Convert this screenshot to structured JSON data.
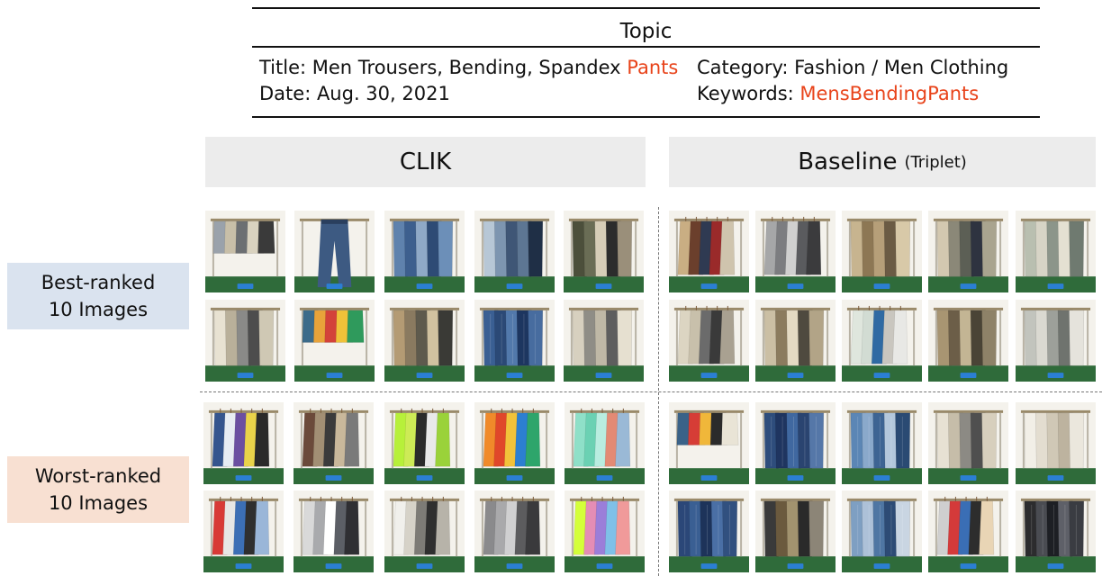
{
  "topic": {
    "heading": "Topic",
    "title_prefix": "Title: Men Trousers, Bending, Spandex ",
    "title_highlight": "Pants",
    "date": "Date: Aug. 30, 2021",
    "category": "Category: Fashion / Men Clothing",
    "keywords_prefix": "Keywords: ",
    "keywords_highlight": "MensBendingPants",
    "highlight_color": "#e8431a"
  },
  "columns": {
    "clik": "CLIK",
    "baseline": "Baseline",
    "baseline_sub": "(Triplet)"
  },
  "rows": {
    "best_line1": "Best-ranked",
    "best_line2": "10 Images",
    "best_color": "#dae3ef",
    "worst_line1": "Worst-ranked",
    "worst_line2": "10 Images",
    "worst_color": "#f8e0d2"
  },
  "grids": {
    "clik_best": [
      {
        "type": "shorts",
        "colors": [
          "#9aa2ab",
          "#c8bfa8",
          "#6c6f72",
          "#d9d2bf",
          "#3a3a3a"
        ]
      },
      {
        "type": "jeans-single",
        "colors": [
          "#3d5a82"
        ]
      },
      {
        "type": "pants",
        "colors": [
          "#5f82ad",
          "#3d5f8e",
          "#8fa9c7",
          "#2e4b75",
          "#6c8fb8"
        ]
      },
      {
        "type": "pants",
        "colors": [
          "#b7c7d6",
          "#7d95b0",
          "#3f5676",
          "#5d7693",
          "#1f2f46"
        ]
      },
      {
        "type": "pants",
        "colors": [
          "#4c4f3b",
          "#6a6d55",
          "#d6cdb7",
          "#2c2c2c",
          "#9a8f7a"
        ]
      },
      {
        "type": "pants",
        "colors": [
          "#e8e2d2",
          "#b9b09a",
          "#8a8a88",
          "#4d4d4d",
          "#cfc8b4"
        ]
      },
      {
        "type": "shorts",
        "colors": [
          "#3c6b8a",
          "#e8a33a",
          "#d3423a",
          "#f0c239",
          "#2f9a5c"
        ]
      },
      {
        "type": "pants",
        "colors": [
          "#b49b74",
          "#8a7a60",
          "#5e5a4d",
          "#d1c2a0",
          "#3a3a36"
        ]
      },
      {
        "type": "jeans",
        "colors": [
          "#3a5f93",
          "#2b4976",
          "#5279ab",
          "#1d3660",
          "#476c9f"
        ]
      },
      {
        "type": "pants",
        "colors": [
          "#d7d0bf",
          "#8f8d86",
          "#bfb8a6",
          "#5e5e5e",
          "#e6e0d0"
        ]
      }
    ],
    "baseline_best": [
      {
        "type": "shirts",
        "colors": [
          "#c9ae83",
          "#6b3f2c",
          "#2f3a52",
          "#9a2a2a",
          "#cfc4ad"
        ]
      },
      {
        "type": "shirts",
        "colors": [
          "#a6a7a8",
          "#7c7d80",
          "#d0d0cf",
          "#5a5b5e",
          "#3b3b3d"
        ]
      },
      {
        "type": "pants",
        "colors": [
          "#c7b48f",
          "#8d7754",
          "#b69f79",
          "#6b5b44",
          "#d8c9a8"
        ]
      },
      {
        "type": "pants",
        "colors": [
          "#d3c8b0",
          "#8b8878",
          "#5c5f55",
          "#2e3340",
          "#a9a48f"
        ]
      },
      {
        "type": "pants",
        "colors": [
          "#b9bfb0",
          "#d7d4c6",
          "#8c958a",
          "#e4e0d2",
          "#6f7a70"
        ]
      },
      {
        "type": "shirts",
        "colors": [
          "#dcd5c2",
          "#c8c0ab",
          "#6b6b6b",
          "#3a3a3a",
          "#a9a191"
        ]
      },
      {
        "type": "pants",
        "colors": [
          "#cbbfa4",
          "#8b7b5e",
          "#e4dac3",
          "#4f4a3f",
          "#b2a487"
        ]
      },
      {
        "type": "shirts",
        "colors": [
          "#dfe6dd",
          "#d2dcd3",
          "#2f6aa3",
          "#c9c6bf",
          "#e8e8e5"
        ]
      },
      {
        "type": "pants",
        "colors": [
          "#a89572",
          "#6c5e48",
          "#c3b594",
          "#4a4436",
          "#8e8268"
        ]
      },
      {
        "type": "pants",
        "colors": [
          "#c2c4bd",
          "#dad9d1",
          "#9da09a",
          "#6f736e",
          "#e5e3dc"
        ]
      }
    ],
    "clik_worst": [
      {
        "type": "shirts",
        "colors": [
          "#35558e",
          "#e7ecf3",
          "#6b4fa1",
          "#e9d34a",
          "#2a2a2a"
        ]
      },
      {
        "type": "shirts",
        "colors": [
          "#6b4a3a",
          "#a28f74",
          "#3b3b3b",
          "#c9b89b",
          "#7a7a7a"
        ]
      },
      {
        "type": "shirts",
        "colors": [
          "#b7f03a",
          "#cdeb56",
          "#2b2b2b",
          "#e9e9e9",
          "#9ad23a"
        ]
      },
      {
        "type": "shirts",
        "colors": [
          "#f08a2a",
          "#e0472a",
          "#f2c23a",
          "#2c7fd1",
          "#2ea56b"
        ]
      },
      {
        "type": "shirts",
        "colors": [
          "#8fe0c8",
          "#6bd1b3",
          "#b9ede0",
          "#e38a74",
          "#9ab9d6"
        ]
      },
      {
        "type": "shirts",
        "colors": [
          "#d83a36",
          "#e7e7e5",
          "#3c6fb5",
          "#2f2f2f",
          "#9ab6d8"
        ]
      },
      {
        "type": "shirts",
        "colors": [
          "#d9d9d9",
          "#a9aaad",
          "#ffffff",
          "#5c5f66",
          "#2f2f33"
        ]
      },
      {
        "type": "shirts",
        "colors": [
          "#f1f0ec",
          "#d6d2c8",
          "#7d7b76",
          "#2f2f2f",
          "#b7b3a9"
        ]
      },
      {
        "type": "shirts",
        "colors": [
          "#8a8a8c",
          "#a9a9ab",
          "#d0d0d1",
          "#5c5c5e",
          "#3a3a3c"
        ]
      },
      {
        "type": "shirts",
        "colors": [
          "#d4ff3a",
          "#e48db5",
          "#9b7ed9",
          "#7fc0e8",
          "#f09a9a"
        ]
      }
    ],
    "baseline_worst": [
      {
        "type": "shorts",
        "colors": [
          "#3a6288",
          "#d63d36",
          "#f0b73a",
          "#2b2b2b",
          "#e9e4d6"
        ]
      },
      {
        "type": "jeans",
        "colors": [
          "#2e4d7c",
          "#1f3560",
          "#4068a0",
          "#2a4470",
          "#5577a8"
        ]
      },
      {
        "type": "jeans",
        "colors": [
          "#5b86b5",
          "#8aa9cb",
          "#3d6493",
          "#b3c7dc",
          "#2a4a73"
        ]
      },
      {
        "type": "pants",
        "colors": [
          "#e7e1d3",
          "#c6bda9",
          "#8c8a84",
          "#4f4f4f",
          "#d7cfbd"
        ]
      },
      {
        "type": "pants",
        "colors": [
          "#f2efe7",
          "#e3ddd0",
          "#d0c8b6",
          "#bdb39f",
          "#ebe7dd"
        ]
      },
      {
        "type": "jeans",
        "colors": [
          "#2b4778",
          "#3a5f93",
          "#1d335a",
          "#4a6fa5",
          "#31507f"
        ]
      },
      {
        "type": "pants",
        "colors": [
          "#3a3a3a",
          "#6b5a3e",
          "#a2936f",
          "#2a2a2a",
          "#8c8577"
        ]
      },
      {
        "type": "jeans",
        "colors": [
          "#7e9fc2",
          "#adc1d8",
          "#4f76a3",
          "#2d4b75",
          "#c9d5e2"
        ]
      },
      {
        "type": "shirts",
        "colors": [
          "#cfcfcf",
          "#d43a3a",
          "#3a6eb5",
          "#2d2d2d",
          "#e9d5b5"
        ]
      },
      {
        "type": "jeans",
        "colors": [
          "#2c2c2e",
          "#4a4c52",
          "#1d1f24",
          "#5e6068",
          "#3a3c42"
        ]
      }
    ]
  }
}
